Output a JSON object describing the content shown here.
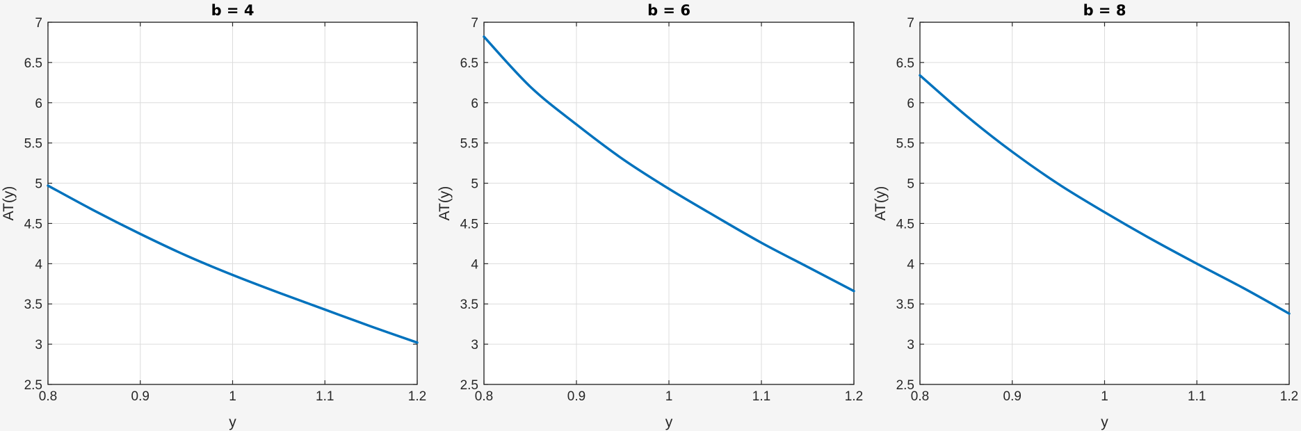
{
  "chart_data": [
    {
      "type": "line",
      "title": "b = 4",
      "xlabel": "y",
      "ylabel": "AT(y)",
      "xlim": [
        0.8,
        1.2
      ],
      "ylim": [
        2.5,
        7
      ],
      "xticks": [
        "0.8",
        "0.9",
        "1",
        "1.1",
        "1.2"
      ],
      "yticks": [
        "2.5",
        "3",
        "3.5",
        "4",
        "4.5",
        "5",
        "5.5",
        "6",
        "6.5",
        "7"
      ],
      "grid": true,
      "series": [
        {
          "color": "#0072bd",
          "x": [
            0.8,
            0.85,
            0.9,
            0.95,
            1.0,
            1.05,
            1.1,
            1.15,
            1.2
          ],
          "y": [
            4.97,
            4.66,
            4.37,
            4.1,
            3.86,
            3.64,
            3.43,
            3.22,
            3.02
          ]
        }
      ]
    },
    {
      "type": "line",
      "title": "b = 6",
      "xlabel": "y",
      "ylabel": "AT(y)",
      "xlim": [
        0.8,
        1.2
      ],
      "ylim": [
        2.5,
        7
      ],
      "xticks": [
        "0.8",
        "0.9",
        "1",
        "1.1",
        "1.2"
      ],
      "yticks": [
        "2.5",
        "3",
        "3.5",
        "4",
        "4.5",
        "5",
        "5.5",
        "6",
        "6.5",
        "7"
      ],
      "grid": true,
      "series": [
        {
          "color": "#0072bd",
          "x": [
            0.8,
            0.85,
            0.9,
            0.95,
            1.0,
            1.05,
            1.1,
            1.15,
            1.2
          ],
          "y": [
            6.82,
            6.2,
            5.73,
            5.3,
            4.93,
            4.59,
            4.26,
            3.96,
            3.66
          ]
        }
      ]
    },
    {
      "type": "line",
      "title": "b = 8",
      "xlabel": "y",
      "ylabel": "AT(y)",
      "xlim": [
        0.8,
        1.2
      ],
      "ylim": [
        2.5,
        7
      ],
      "xticks": [
        "0.8",
        "0.9",
        "1",
        "1.1",
        "1.2"
      ],
      "yticks": [
        "2.5",
        "3",
        "3.5",
        "4",
        "4.5",
        "5",
        "5.5",
        "6",
        "6.5",
        "7"
      ],
      "grid": true,
      "series": [
        {
          "color": "#0072bd",
          "x": [
            0.8,
            0.85,
            0.9,
            0.95,
            1.0,
            1.05,
            1.1,
            1.15,
            1.2
          ],
          "y": [
            6.34,
            5.84,
            5.39,
            4.99,
            4.64,
            4.31,
            4.0,
            3.7,
            3.38
          ]
        }
      ]
    }
  ]
}
